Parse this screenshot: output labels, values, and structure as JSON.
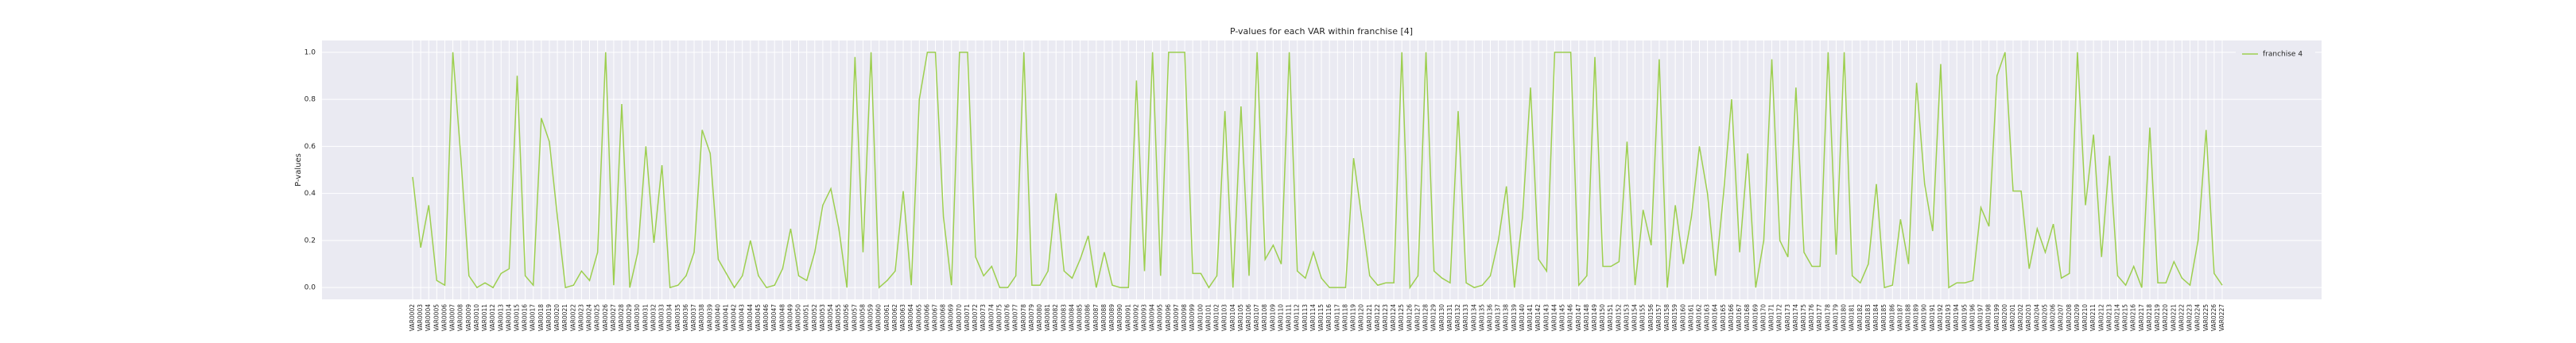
{
  "chart_data": {
    "type": "line",
    "title": "P-values for each VAR within franchise [4]",
    "ylabel": "P-values",
    "categories": [
      "VAR0002",
      "VAR0003",
      "VAR0004",
      "VAR0005",
      "VAR0006",
      "VAR0007",
      "VAR0008",
      "VAR0009",
      "VAR0010",
      "VAR0011",
      "VAR0012",
      "VAR0013",
      "VAR0014",
      "VAR0015",
      "VAR0016",
      "VAR0017",
      "VAR0018",
      "VAR0019",
      "VAR0020",
      "VAR0021",
      "VAR0022",
      "VAR0023",
      "VAR0024",
      "VAR0025",
      "VAR0026",
      "VAR0027",
      "VAR0028",
      "VAR0029",
      "VAR0030",
      "VAR0031",
      "VAR0032",
      "VAR0033",
      "VAR0034",
      "VAR0035",
      "VAR0036",
      "VAR0037",
      "VAR0038",
      "VAR0039",
      "VAR0040",
      "VAR0041",
      "VAR0042",
      "VAR0043",
      "VAR0044",
      "VAR0045",
      "VAR0046",
      "VAR0047",
      "VAR0048",
      "VAR0049",
      "VAR0050",
      "VAR0051",
      "VAR0052",
      "VAR0053",
      "VAR0054",
      "VAR0055",
      "VAR0056",
      "VAR0057",
      "VAR0058",
      "VAR0059",
      "VAR0060",
      "VAR0061",
      "VAR0062",
      "VAR0063",
      "VAR0064",
      "VAR0065",
      "VAR0066",
      "VAR0067",
      "VAR0068",
      "VAR0069",
      "VAR0070",
      "VAR0071",
      "VAR0072",
      "VAR0073",
      "VAR0074",
      "VAR0075",
      "VAR0076",
      "VAR0077",
      "VAR0078",
      "VAR0079",
      "VAR0080",
      "VAR0081",
      "VAR0082",
      "VAR0083",
      "VAR0084",
      "VAR0085",
      "VAR0086",
      "VAR0087",
      "VAR0088",
      "VAR0089",
      "VAR0090",
      "VAR0091",
      "VAR0092",
      "VAR0093",
      "VAR0094",
      "VAR0095",
      "VAR0096",
      "VAR0097",
      "VAR0098",
      "VAR0099",
      "VAR0100",
      "VAR0101",
      "VAR0102",
      "VAR0103",
      "VAR0104",
      "VAR0105",
      "VAR0106",
      "VAR0107",
      "VAR0108",
      "VAR0109",
      "VAR0110",
      "VAR0111",
      "VAR0112",
      "VAR0113",
      "VAR0114",
      "VAR0115",
      "VAR0116",
      "VAR0117",
      "VAR0118",
      "VAR0119",
      "VAR0120",
      "VAR0121",
      "VAR0122",
      "VAR0123",
      "VAR0124",
      "VAR0125",
      "VAR0126",
      "VAR0127",
      "VAR0128",
      "VAR0129",
      "VAR0130",
      "VAR0131",
      "VAR0132",
      "VAR0133",
      "VAR0134",
      "VAR0135",
      "VAR0136",
      "VAR0137",
      "VAR0138",
      "VAR0139",
      "VAR0140",
      "VAR0141",
      "VAR0142",
      "VAR0143",
      "VAR0144",
      "VAR0145",
      "VAR0146",
      "VAR0147",
      "VAR0148",
      "VAR0149",
      "VAR0150",
      "VAR0151",
      "VAR0152",
      "VAR0153",
      "VAR0154",
      "VAR0155",
      "VAR0156",
      "VAR0157",
      "VAR0158",
      "VAR0159",
      "VAR0160",
      "VAR0161",
      "VAR0162",
      "VAR0163",
      "VAR0164",
      "VAR0165",
      "VAR0166",
      "VAR0167",
      "VAR0168",
      "VAR0169",
      "VAR0170",
      "VAR0171",
      "VAR0172",
      "VAR0173",
      "VAR0174",
      "VAR0175",
      "VAR0176",
      "VAR0177",
      "VAR0178",
      "VAR0179",
      "VAR0180",
      "VAR0181",
      "VAR0182",
      "VAR0183",
      "VAR0184",
      "VAR0185",
      "VAR0186",
      "VAR0187",
      "VAR0188",
      "VAR0189",
      "VAR0190",
      "VAR0191",
      "VAR0192",
      "VAR0193",
      "VAR0194",
      "VAR0195",
      "VAR0196",
      "VAR0197",
      "VAR0198",
      "VAR0199",
      "VAR0200",
      "VAR0201",
      "VAR0202",
      "VAR0203",
      "VAR0204",
      "VAR0205",
      "VAR0206",
      "VAR0207",
      "VAR0208",
      "VAR0209",
      "VAR0210",
      "VAR0211",
      "VAR0212",
      "VAR0213",
      "VAR0214",
      "VAR0215",
      "VAR0216",
      "VAR0217",
      "VAR0218",
      "VAR0219",
      "VAR0220",
      "VAR0221",
      "VAR0222",
      "VAR0223",
      "VAR0224",
      "VAR0225",
      "VAR0226",
      "VAR0227"
    ],
    "series": [
      {
        "name": "franchise 4",
        "color": "#9dcf4f",
        "values": [
          0.47,
          0.17,
          0.35,
          0.03,
          0.01,
          1.0,
          0.55,
          0.05,
          0.0,
          0.02,
          0.0,
          0.06,
          0.08,
          0.9,
          0.05,
          0.01,
          0.72,
          0.62,
          0.3,
          0.0,
          0.01,
          0.07,
          0.03,
          0.15,
          1.0,
          0.01,
          0.78,
          0.0,
          0.15,
          0.6,
          0.19,
          0.52,
          0.0,
          0.01,
          0.05,
          0.15,
          0.67,
          0.57,
          0.12,
          0.06,
          0.0,
          0.05,
          0.2,
          0.05,
          0.0,
          0.01,
          0.08,
          0.25,
          0.05,
          0.03,
          0.15,
          0.35,
          0.42,
          0.25,
          0.0,
          0.98,
          0.15,
          1.0,
          0.0,
          0.03,
          0.07,
          0.41,
          0.01,
          0.8,
          1.0,
          1.0,
          0.3,
          0.01,
          1.0,
          1.0,
          0.13,
          0.05,
          0.09,
          0.0,
          0.0,
          0.05,
          1.0,
          0.01,
          0.01,
          0.07,
          0.4,
          0.07,
          0.04,
          0.12,
          0.22,
          0.0,
          0.15,
          0.01,
          0.0,
          0.0,
          0.88,
          0.07,
          1.0,
          0.05,
          1.0,
          1.0,
          1.0,
          0.06,
          0.06,
          0.0,
          0.05,
          0.75,
          0.0,
          0.77,
          0.05,
          1.0,
          0.12,
          0.18,
          0.1,
          1.0,
          0.07,
          0.04,
          0.15,
          0.04,
          0.0,
          0.0,
          0.0,
          0.55,
          0.3,
          0.05,
          0.01,
          0.02,
          0.02,
          1.0,
          0.0,
          0.05,
          1.0,
          0.07,
          0.04,
          0.02,
          0.75,
          0.02,
          0.0,
          0.01,
          0.05,
          0.2,
          0.43,
          0.0,
          0.3,
          0.85,
          0.12,
          0.07,
          1.0,
          1.0,
          1.0,
          0.01,
          0.05,
          0.98,
          0.09,
          0.09,
          0.11,
          0.62,
          0.01,
          0.33,
          0.18,
          0.97,
          0.0,
          0.35,
          0.1,
          0.3,
          0.6,
          0.4,
          0.05,
          0.4,
          0.8,
          0.15,
          0.57,
          0.0,
          0.2,
          0.97,
          0.2,
          0.13,
          0.85,
          0.15,
          0.09,
          0.09,
          1.0,
          0.14,
          1.0,
          0.05,
          0.02,
          0.1,
          0.44,
          0.0,
          0.01,
          0.29,
          0.1,
          0.87,
          0.44,
          0.24,
          0.95,
          0.0,
          0.02,
          0.02,
          0.03,
          0.34,
          0.26,
          0.9,
          1.0,
          0.41,
          0.41,
          0.08,
          0.25,
          0.15,
          0.27,
          0.04,
          0.06,
          1.0,
          0.35,
          0.65,
          0.13,
          0.56,
          0.05,
          0.01,
          0.09,
          0.0,
          0.68,
          0.02,
          0.02,
          0.11,
          0.04,
          0.01,
          0.2,
          0.67,
          0.06,
          0.01
        ]
      }
    ],
    "ylim": [
      -0.05,
      1.05
    ],
    "yticks": [
      {
        "value": 0,
        "label": "0.0"
      },
      {
        "value": 0.2,
        "label": "0.2"
      },
      {
        "value": 0.4,
        "label": "0.4"
      },
      {
        "value": 0.6,
        "label": "0.6"
      },
      {
        "value": 0.8,
        "label": "0.8"
      },
      {
        "value": 1,
        "label": "1.0"
      }
    ],
    "grid": true,
    "legend": "upper right"
  }
}
